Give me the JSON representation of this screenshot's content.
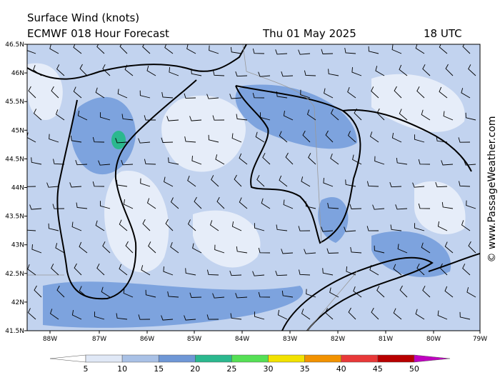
{
  "header": {
    "title": "Surface Wind (knots)",
    "model": "ECMWF 018 Hour Forecast",
    "date": "Thu 01 May 2025",
    "time": "18 UTC"
  },
  "latitudes": [
    "46.5N",
    "46N",
    "45.5N",
    "45N",
    "44.5N",
    "44N",
    "43.5N",
    "43N",
    "42.5N",
    "42N",
    "41.5N"
  ],
  "longitudes": [
    "88W",
    "87W",
    "86W",
    "85W",
    "84W",
    "83W",
    "82W",
    "81W",
    "80W",
    "79W"
  ],
  "legend": {
    "labels": [
      "5",
      "10",
      "15",
      "20",
      "25",
      "30",
      "35",
      "40",
      "45",
      "50"
    ],
    "colors": [
      "#ffffff",
      "#e0e8f6",
      "#a9c1e6",
      "#6f97d6",
      "#2bb88e",
      "#55e055",
      "#f2e200",
      "#f29200",
      "#e83838",
      "#b80000",
      "#c000c0"
    ]
  },
  "credit": "© www.PassageWeather.com"
}
